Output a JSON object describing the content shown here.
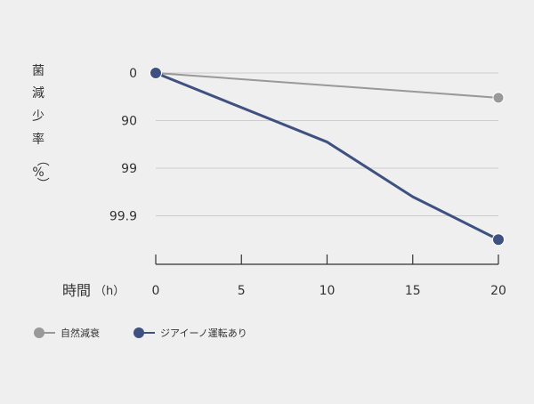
{
  "colors": {
    "background": "#efefef",
    "grid": "#cccccc",
    "axis": "#333333",
    "text": "#333333"
  },
  "chart_data": {
    "type": "line",
    "title": "",
    "ylabel": "菌減少率（%）",
    "xlabel": "時間",
    "xlabel_unit": "（h）",
    "x": [
      0,
      5,
      10,
      15,
      20
    ],
    "x_ticks": [
      "0",
      "5",
      "10",
      "15",
      "20"
    ],
    "y_ticks": [
      "0",
      "90",
      "99",
      "99.9"
    ],
    "y_scale": "log-reduction (0, 1, 2, 3 log)",
    "ylim_log": [
      0,
      3.35
    ],
    "grid": true,
    "legend_position": "bottom-left",
    "series": [
      {
        "name": "自然減衰",
        "color": "#999999",
        "x": [
          0,
          20
        ],
        "y_log": [
          0,
          0.52
        ],
        "marker_x": [
          0,
          20
        ]
      },
      {
        "name": "ジアイーノ運転あり",
        "color": "#3e5180",
        "x": [
          0,
          10,
          15,
          20
        ],
        "y_log": [
          0,
          1.45,
          2.6,
          3.5
        ],
        "marker_x": [
          0,
          20
        ]
      }
    ]
  }
}
